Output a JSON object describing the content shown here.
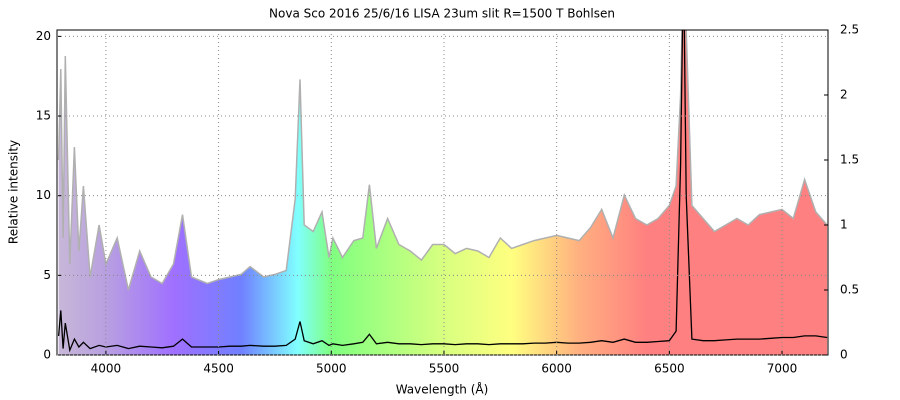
{
  "chart_data": {
    "type": "line",
    "title": "Nova Sco 2016 25/6/16 LISA 23um slit R=1500 T Bohlsen",
    "xlabel": "Wavelength (Å)",
    "ylabel": "Relative intensity",
    "x": [
      3790,
      3800,
      3810,
      3820,
      3840,
      3860,
      3880,
      3900,
      3930,
      3970,
      4000,
      4050,
      4100,
      4150,
      4200,
      4250,
      4300,
      4340,
      4380,
      4450,
      4500,
      4550,
      4600,
      4640,
      4700,
      4750,
      4800,
      4840,
      4861,
      4880,
      4920,
      4959,
      4990,
      5007,
      5050,
      5100,
      5140,
      5169,
      5200,
      5250,
      5300,
      5350,
      5400,
      5450,
      5500,
      5550,
      5600,
      5650,
      5700,
      5750,
      5800,
      5850,
      5900,
      5950,
      6000,
      6050,
      6100,
      6150,
      6200,
      6250,
      6300,
      6350,
      6400,
      6450,
      6500,
      6530,
      6550,
      6563,
      6575,
      6600,
      6650,
      6700,
      6750,
      6800,
      6850,
      6900,
      6950,
      7000,
      7050,
      7100,
      7150,
      7200
    ],
    "series": [
      {
        "color": "#b0b0b0",
        "axis": "y2",
        "values": [
          1.5,
          2.2,
          0.9,
          2.3,
          0.7,
          1.6,
          0.8,
          1.3,
          0.6,
          1.0,
          0.7,
          0.9,
          0.5,
          0.8,
          0.6,
          0.55,
          0.7,
          1.08,
          0.6,
          0.55,
          0.58,
          0.6,
          0.62,
          0.68,
          0.6,
          0.62,
          0.65,
          1.2,
          2.12,
          1.0,
          0.95,
          1.1,
          0.75,
          0.9,
          0.75,
          0.88,
          0.9,
          1.31,
          0.82,
          1.05,
          0.85,
          0.8,
          0.73,
          0.85,
          0.85,
          0.78,
          0.82,
          0.8,
          0.75,
          0.9,
          0.82,
          0.85,
          0.88,
          0.9,
          0.92,
          0.9,
          0.88,
          0.98,
          1.12,
          0.9,
          1.23,
          1.05,
          1.0,
          1.05,
          1.15,
          1.3,
          2.0,
          3.0,
          2.5,
          1.15,
          1.05,
          0.95,
          1.0,
          1.05,
          1.0,
          1.08,
          1.1,
          1.12,
          1.05,
          1.35,
          1.1,
          1.0
        ]
      },
      {
        "color": "#000000",
        "values": [
          1.2,
          2.8,
          0.4,
          2.0,
          0.3,
          1.0,
          0.5,
          0.8,
          0.4,
          0.6,
          0.5,
          0.6,
          0.4,
          0.55,
          0.5,
          0.45,
          0.55,
          1.0,
          0.5,
          0.5,
          0.5,
          0.55,
          0.55,
          0.6,
          0.55,
          0.55,
          0.6,
          1.0,
          2.1,
          0.9,
          0.7,
          0.9,
          0.6,
          0.7,
          0.6,
          0.7,
          0.8,
          1.3,
          0.7,
          0.8,
          0.7,
          0.7,
          0.65,
          0.7,
          0.7,
          0.65,
          0.7,
          0.7,
          0.65,
          0.7,
          0.7,
          0.7,
          0.75,
          0.75,
          0.8,
          0.75,
          0.75,
          0.8,
          0.9,
          0.8,
          1.0,
          0.8,
          0.8,
          0.85,
          0.9,
          1.5,
          12,
          25,
          10,
          1.0,
          0.9,
          0.9,
          0.95,
          1.0,
          1.0,
          1.0,
          1.05,
          1.1,
          1.1,
          1.2,
          1.2,
          1.1
        ]
      }
    ],
    "xlim": [
      3783,
      7204
    ],
    "xticks": [
      4000,
      4500,
      5000,
      5500,
      6000,
      6500,
      7000
    ],
    "ylim": [
      0,
      20.4
    ],
    "yticks": [
      0,
      5,
      10,
      15,
      20
    ],
    "y2lim": [
      0,
      2.5
    ],
    "y2ticks": [
      0,
      0.5,
      1,
      1.5,
      2,
      2.5
    ],
    "grid": true
  }
}
